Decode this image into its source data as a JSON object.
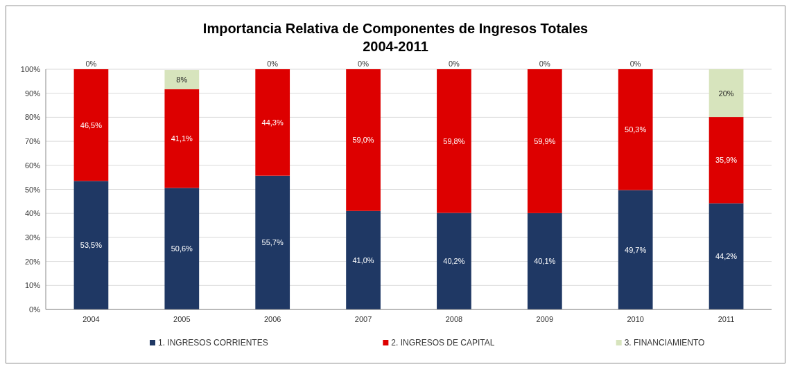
{
  "chart_data": {
    "type": "bar",
    "stacked": true,
    "title": "Importancia Relativa de Componentes de Ingresos Totales",
    "subtitle": "2004-2011",
    "categories": [
      "2004",
      "2005",
      "2006",
      "2007",
      "2008",
      "2009",
      "2010",
      "2011"
    ],
    "series": [
      {
        "name": "1.  INGRESOS CORRIENTES",
        "color": "#1f3864",
        "values": [
          53.5,
          50.6,
          55.7,
          41.0,
          40.2,
          40.1,
          49.7,
          44.2
        ],
        "value_labels": [
          "53,5%",
          "50,6%",
          "55,7%",
          "41,0%",
          "40,2%",
          "40,1%",
          "49,7%",
          "44,2%"
        ]
      },
      {
        "name": "2.  INGRESOS DE CAPITAL",
        "color": "#dd0000",
        "values": [
          46.5,
          41.1,
          44.3,
          59.0,
          59.8,
          59.9,
          50.3,
          35.9
        ],
        "value_labels": [
          "46,5%",
          "41,1%",
          "44,3%",
          "59,0%",
          "59,8%",
          "59,9%",
          "50,3%",
          "35,9%"
        ]
      },
      {
        "name": "3. FINANCIAMIENTO",
        "color": "#d7e4bd",
        "values": [
          0,
          8,
          0,
          0,
          0,
          0,
          0,
          19.9
        ],
        "value_labels": [
          "0%",
          "8%",
          "0%",
          "0%",
          "0%",
          "0%",
          "0%",
          "20%"
        ]
      }
    ],
    "ylim": [
      0,
      100
    ],
    "yticks": [
      {
        "value": 0,
        "label": "0%"
      },
      {
        "value": 10,
        "label": "10%"
      },
      {
        "value": 20,
        "label": "20%"
      },
      {
        "value": 30,
        "label": "30%"
      },
      {
        "value": 40,
        "label": "40%"
      },
      {
        "value": 50,
        "label": "50%"
      },
      {
        "value": 60,
        "label": "60%"
      },
      {
        "value": 70,
        "label": "70%"
      },
      {
        "value": 80,
        "label": "80%"
      },
      {
        "value": 90,
        "label": "90%"
      },
      {
        "value": 100,
        "label": "100%"
      }
    ],
    "grid": "y",
    "legend": "bottom"
  }
}
